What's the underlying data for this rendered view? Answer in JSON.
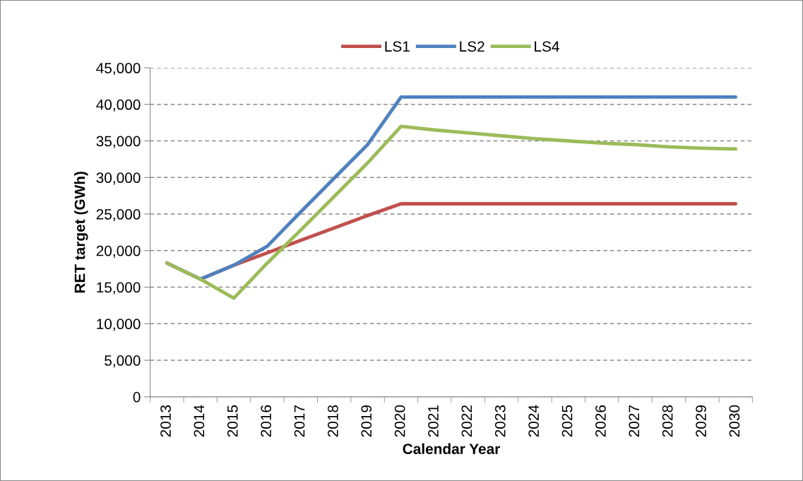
{
  "chart_data": {
    "type": "line",
    "xlabel": "Calendar Year",
    "ylabel": "RET target (GWh)",
    "categories": [
      "2013",
      "2014",
      "2015",
      "2016",
      "2017",
      "2018",
      "2019",
      "2020",
      "2021",
      "2022",
      "2023",
      "2024",
      "2025",
      "2026",
      "2027",
      "2028",
      "2029",
      "2030"
    ],
    "series": [
      {
        "name": "LS1",
        "color": "#c0504d",
        "values": [
          18300,
          16100,
          18000,
          19700,
          21400,
          23100,
          24800,
          26400,
          26400,
          26400,
          26400,
          26400,
          26400,
          26400,
          26400,
          26400,
          26400,
          26400
        ]
      },
      {
        "name": "LS2",
        "color": "#4f81bd",
        "values": [
          18300,
          16100,
          18000,
          20600,
          25300,
          29900,
          34500,
          41000,
          41000,
          41000,
          41000,
          41000,
          41000,
          41000,
          41000,
          41000,
          41000,
          41000
        ]
      },
      {
        "name": "LS4",
        "color": "#9bbb59",
        "values": [
          18300,
          16100,
          13500,
          18300,
          22800,
          27400,
          32000,
          37000,
          36500,
          36100,
          35700,
          35300,
          35000,
          34700,
          34500,
          34200,
          34000,
          33900
        ]
      }
    ],
    "ylim": [
      0,
      45000
    ],
    "yticks": [
      {
        "value": 0,
        "label": "0"
      },
      {
        "value": 5000,
        "label": "5,000"
      },
      {
        "value": 10000,
        "label": "10,000"
      },
      {
        "value": 15000,
        "label": "15,000"
      },
      {
        "value": 20000,
        "label": "20,000"
      },
      {
        "value": 25000,
        "label": "25,000"
      },
      {
        "value": 30000,
        "label": "30,000"
      },
      {
        "value": 35000,
        "label": "35,000"
      },
      {
        "value": 40000,
        "label": "40,000"
      },
      {
        "value": 45000,
        "label": "45,000"
      }
    ],
    "grid": "y",
    "legend": "top",
    "marker": "none",
    "line_style": "solid"
  }
}
